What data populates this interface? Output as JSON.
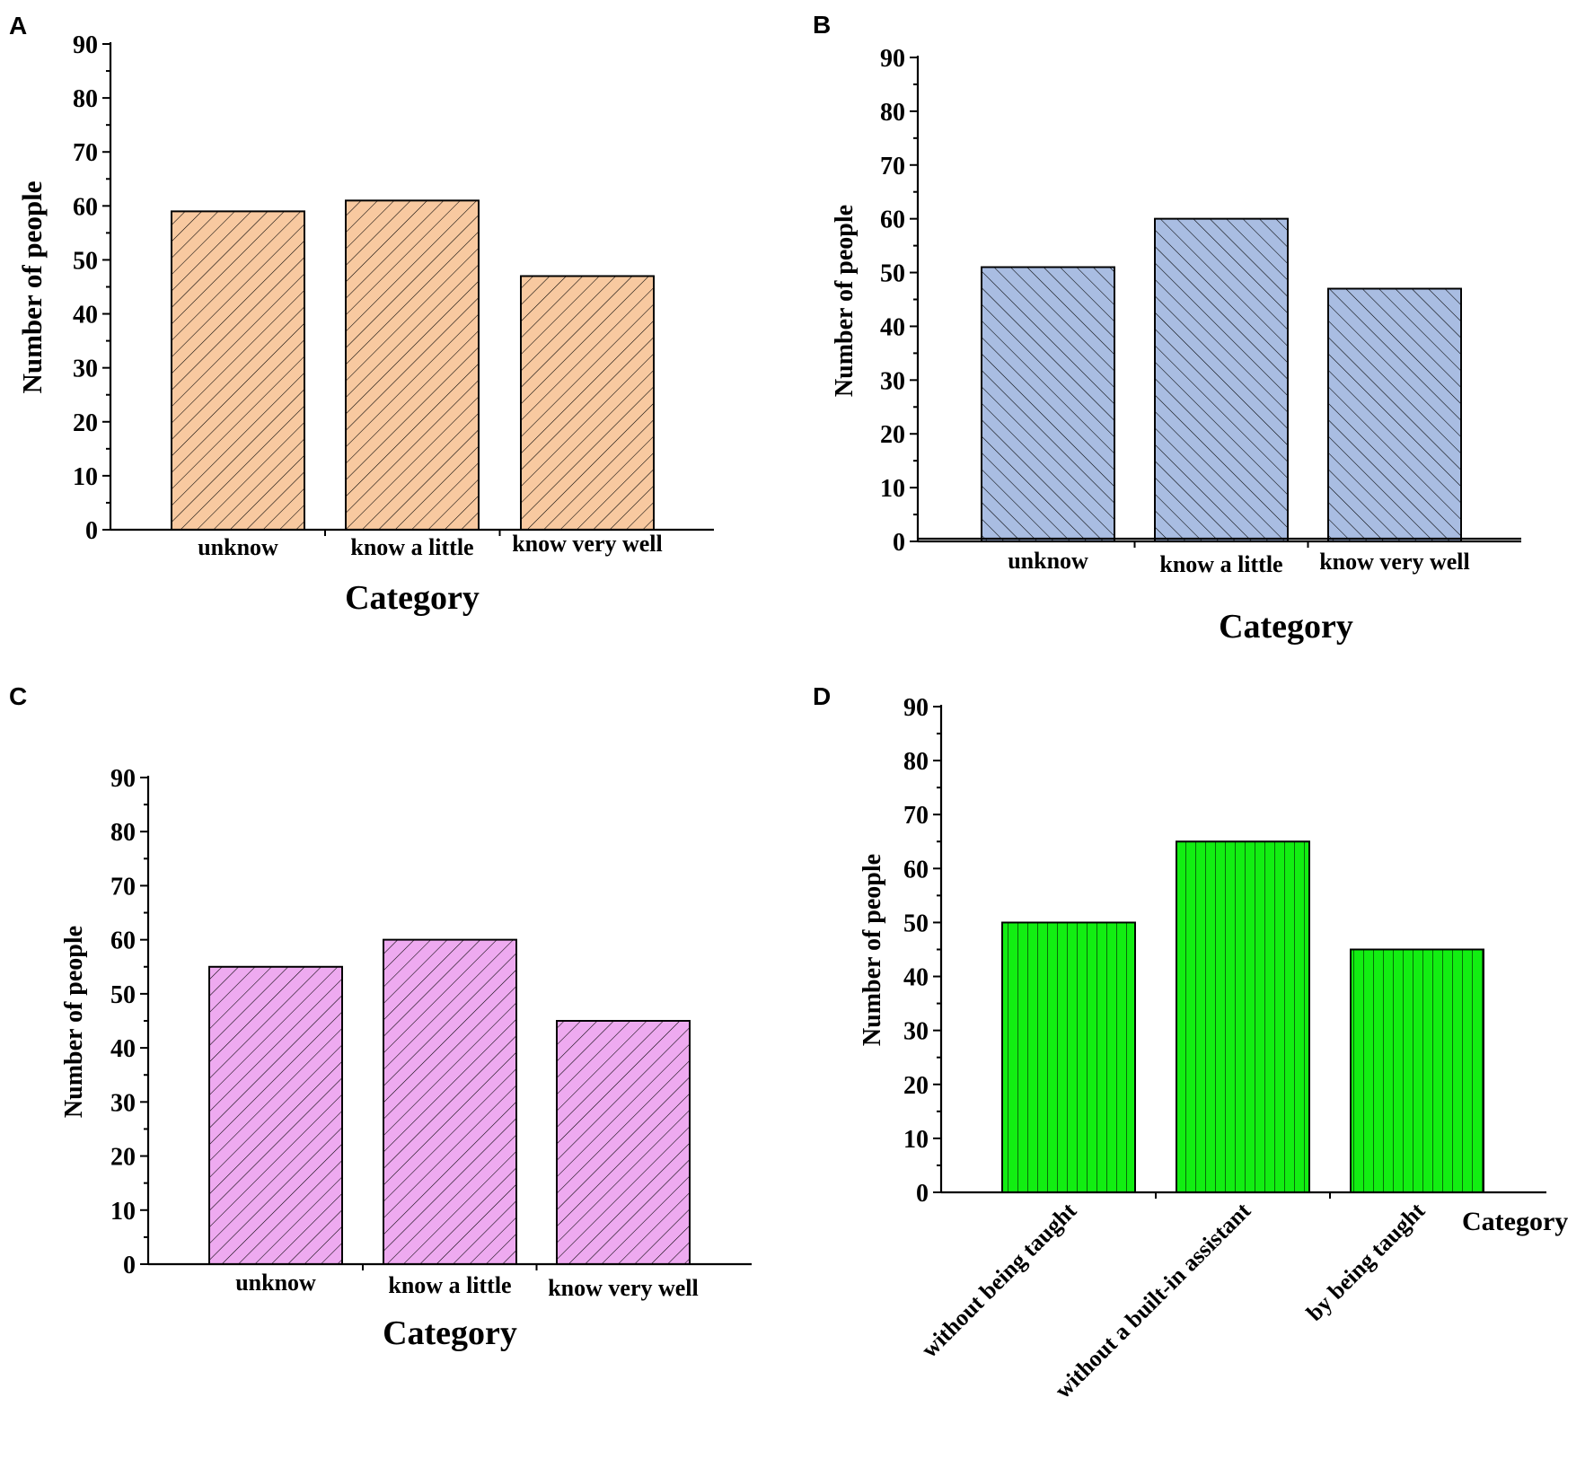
{
  "chart_data": [
    {
      "panel": "A",
      "type": "bar",
      "categories": [
        "unknow",
        "know a little",
        "know very well"
      ],
      "values": [
        59,
        61,
        47
      ],
      "xlabel": "Category",
      "ylabel": "Number of people",
      "ylim": [
        0,
        90
      ],
      "yticks": [
        0,
        10,
        20,
        30,
        40,
        50,
        60,
        70,
        80,
        90
      ],
      "bar_color": "#f8c9a0",
      "hatch": "forward-diagonal"
    },
    {
      "panel": "B",
      "type": "bar",
      "categories": [
        "unknow",
        "know a little",
        "know very well"
      ],
      "values": [
        51,
        60,
        47
      ],
      "xlabel": "Category",
      "ylabel": "Number of people",
      "ylim": [
        0,
        90
      ],
      "yticks": [
        0,
        10,
        20,
        30,
        40,
        50,
        60,
        70,
        80,
        90
      ],
      "bar_color": "#a9bde2",
      "hatch": "back-diagonal"
    },
    {
      "panel": "C",
      "type": "bar",
      "categories": [
        "unknow",
        "know a little",
        "know very well"
      ],
      "values": [
        55,
        60,
        45
      ],
      "xlabel": "Category",
      "ylabel": "Number of people",
      "ylim": [
        0,
        90
      ],
      "yticks": [
        0,
        10,
        20,
        30,
        40,
        50,
        60,
        70,
        80,
        90
      ],
      "bar_color": "#eeaaf0",
      "hatch": "forward-diagonal"
    },
    {
      "panel": "D",
      "type": "bar",
      "categories": [
        "without being taught",
        "without a built-in assistant",
        "by being taught"
      ],
      "values": [
        50,
        65,
        45
      ],
      "xlabel": "Category",
      "ylabel": "Number of people",
      "ylim": [
        0,
        90
      ],
      "yticks": [
        0,
        10,
        20,
        30,
        40,
        50,
        60,
        70,
        80,
        90
      ],
      "bar_color": "#12ee12",
      "hatch": "vertical"
    }
  ]
}
